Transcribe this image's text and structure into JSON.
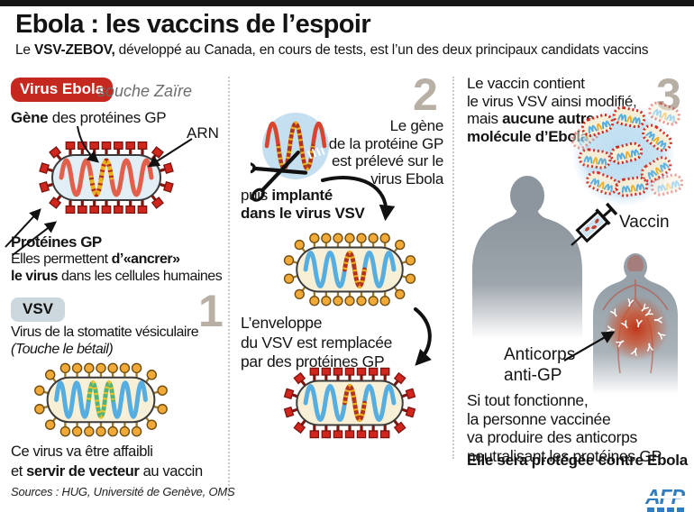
{
  "header": {
    "title": "Ebola : les vaccins de l’espoir",
    "subtitle_pre": "Le ",
    "subtitle_bold": "VSV-ZEBOV,",
    "subtitle_rest": " développé au Canada, en cours de tests, est l’un des deux principaux candidats vaccins"
  },
  "ebola": {
    "badge": "Virus Ebola",
    "strain": "souche Zaïre",
    "gene_bold": "Gène",
    "gene_rest": " des protéines GP",
    "arn": "ARN",
    "prot_title": "Protéines GP",
    "prot_l2_pre": "Elles permettent ",
    "prot_l2_bold": "d’«ancrer»",
    "prot_l3_bold": "le virus",
    "prot_l3_rest": " dans les cellules humaines"
  },
  "vsv": {
    "badge": "VSV",
    "number": "1",
    "desc_l1": "Virus de la stomatite vésiculaire",
    "desc_l2": "(Touche le bétail)",
    "bottom_l1": "Ce virus va être affaibli",
    "bottom_l2_pre": "et ",
    "bottom_l2_bold": "servir de vecteur",
    "bottom_l2_rest": " au vaccin"
  },
  "step2": {
    "number": "2",
    "extract": [
      "Le gène",
      "de la protéine GP",
      "est prélevé sur le",
      "virus Ebola"
    ],
    "implant_pre": "puis ",
    "implant_bold": "implanté",
    "implant_l2": "dans le virus VSV",
    "envelope": [
      "L’enveloppe",
      "du VSV est remplacée",
      "par des protéines GP"
    ]
  },
  "step3": {
    "number": "3",
    "intro_l1": "Le vaccin contient",
    "intro_l2": "le virus VSV ainsi modifié,",
    "intro_l3_pre": "mais ",
    "intro_l3_bold": "aucune autre",
    "intro_l4_bold": "molécule d’Ebola",
    "vaccine_label": "Vaccin",
    "anticorps_l1": "Anticorps",
    "anticorps_l2": "anti-GP",
    "outcome": [
      "Si tout fonctionne,",
      "la personne vaccinée",
      "va produire des anticorps",
      "neutralisant les protéines GP"
    ],
    "outcome_bold": "Elle sera protégée contre Ebola"
  },
  "footer": {
    "sources": "Sources : HUG, Université de Genève, OMS",
    "logo": "AFP"
  },
  "colors": {
    "ebola_red": "#d0261d",
    "spike_dark": "#7d140e",
    "rna_red": "#e2604b",
    "gene_yellow": "#eeaf1e",
    "gene_dash_red": "#b5281c",
    "ebola_body": "#e1eef5",
    "vsv_body": "#f8efd7",
    "vsv_spike": "#f1a937",
    "vsv_spike_dark": "#6e4d12",
    "vsv_stalk": "#9c7a2a",
    "vsv_rna_blue": "#55ade0",
    "vsv_gene_green": "#53b478",
    "vsv_gene_dash": "#e8c52f",
    "hybrid_gene_base": "#b23418",
    "circle_blue": "#c3dff0",
    "number_gray": "#b8afa5",
    "badge_red": "#c5281e",
    "badge_gray": "#ccd8de",
    "silhouette_gray": "#8d969e",
    "silhouette_gray2": "#95a0a8",
    "glow_red": "#c22f12",
    "vessel_red": "#bf4430",
    "afp_blue": "#2e7cc1",
    "outline_dark": "#3b3b3b"
  }
}
